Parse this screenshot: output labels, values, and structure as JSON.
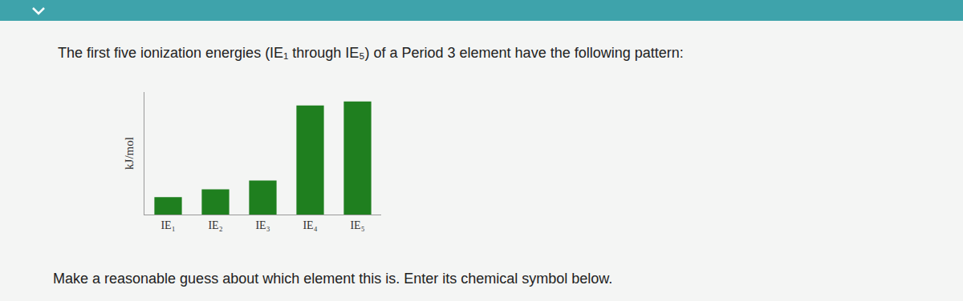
{
  "question": "The first five ionization energies (IE₁ through IE₅) of a Period 3 element have the following pattern:",
  "instruction": "Make a reasonable guess about which element this is. Enter its chemical symbol below.",
  "chart_data": {
    "type": "bar",
    "y_label": "kJ/mol",
    "categories": [
      "IE₁",
      "IE₂",
      "IE₃",
      "IE₄",
      "IE₅"
    ],
    "values": [
      22,
      32,
      43,
      138,
      143
    ],
    "color": "#1f7f1f",
    "ylim": [
      0,
      155
    ],
    "yticks": [],
    "grid": false,
    "tick_labels": "x"
  }
}
